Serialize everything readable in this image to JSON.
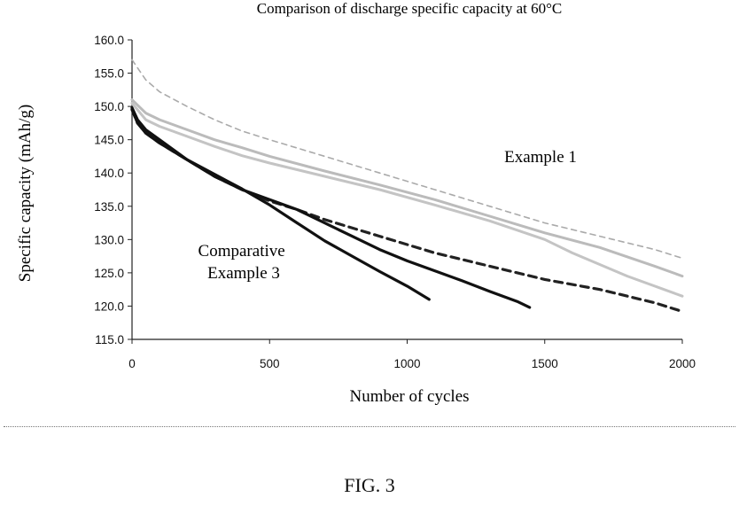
{
  "chart_data": {
    "type": "line",
    "title": "Comparison of discharge specific capacity at 60°C",
    "xlabel": "Number of cycles",
    "ylabel": "Specific capacity (mAh/g)",
    "xlim": [
      0,
      2000
    ],
    "ylim": [
      115,
      160
    ],
    "x_ticks": [
      "0",
      "500",
      "1000",
      "1500",
      "2000"
    ],
    "y_ticks": [
      "115.0",
      "120.0",
      "125.0",
      "130.0",
      "135.0",
      "140.0",
      "145.0",
      "150.0",
      "155.0",
      "160.0"
    ],
    "grid": false,
    "legend": "none",
    "annotations": [
      "Example 1",
      "Comparative\nExample 3"
    ],
    "series": [
      {
        "color": "#aaaaaa",
        "style": "dashed",
        "points": [
          [
            0,
            157
          ],
          [
            50,
            154
          ],
          [
            100,
            152.2
          ],
          [
            200,
            150
          ],
          [
            300,
            148
          ],
          [
            400,
            146.3
          ],
          [
            500,
            145
          ],
          [
            700,
            142.5
          ],
          [
            900,
            140
          ],
          [
            1100,
            137.5
          ],
          [
            1300,
            135
          ],
          [
            1500,
            132.5
          ],
          [
            1700,
            130.5
          ],
          [
            1900,
            128.5
          ],
          [
            2000,
            127.2
          ]
        ]
      },
      {
        "color": "#bbbbbb",
        "style": "solid",
        "points": [
          [
            0,
            151
          ],
          [
            50,
            149
          ],
          [
            100,
            148
          ],
          [
            200,
            146.5
          ],
          [
            300,
            145
          ],
          [
            400,
            143.8
          ],
          [
            500,
            142.5
          ],
          [
            700,
            140.3
          ],
          [
            900,
            138.2
          ],
          [
            1100,
            136
          ],
          [
            1300,
            133.5
          ],
          [
            1500,
            131
          ],
          [
            1700,
            128.8
          ],
          [
            1900,
            126
          ],
          [
            2000,
            124.5
          ]
        ]
      },
      {
        "color": "#c4c4c4",
        "style": "solid",
        "points": [
          [
            0,
            150.5
          ],
          [
            50,
            148
          ],
          [
            100,
            147
          ],
          [
            200,
            145.5
          ],
          [
            300,
            144
          ],
          [
            400,
            142.6
          ],
          [
            500,
            141.5
          ],
          [
            700,
            139.5
          ],
          [
            900,
            137.5
          ],
          [
            1100,
            135.2
          ],
          [
            1300,
            132.8
          ],
          [
            1500,
            130
          ],
          [
            1600,
            128
          ],
          [
            1800,
            124.5
          ],
          [
            2000,
            121.5
          ]
        ]
      },
      {
        "color": "#222222",
        "style": "dashed",
        "points": [
          [
            0,
            149.5
          ],
          [
            20,
            147.5
          ],
          [
            50,
            146
          ],
          [
            100,
            144.5
          ],
          [
            200,
            142
          ],
          [
            300,
            139.5
          ],
          [
            400,
            137.5
          ],
          [
            500,
            135.8
          ],
          [
            600,
            134.5
          ],
          [
            700,
            133
          ],
          [
            900,
            130.5
          ],
          [
            1100,
            128
          ],
          [
            1300,
            126
          ],
          [
            1500,
            124
          ],
          [
            1700,
            122.5
          ],
          [
            1900,
            120.5
          ],
          [
            2000,
            119.2
          ]
        ]
      },
      {
        "color": "#111111",
        "style": "solid",
        "points": [
          [
            0,
            149.8
          ],
          [
            20,
            148
          ],
          [
            50,
            146.5
          ],
          [
            100,
            145
          ],
          [
            200,
            142
          ],
          [
            300,
            139.5
          ],
          [
            400,
            137.5
          ],
          [
            500,
            136
          ],
          [
            600,
            134.5
          ],
          [
            700,
            132.5
          ],
          [
            800,
            130.5
          ],
          [
            900,
            128.5
          ],
          [
            1000,
            126.8
          ],
          [
            1100,
            125.3
          ],
          [
            1200,
            123.8
          ],
          [
            1300,
            122.2
          ],
          [
            1400,
            120.7
          ],
          [
            1445,
            119.8
          ]
        ]
      },
      {
        "color": "#111111",
        "style": "solid",
        "points": [
          [
            0,
            149.6
          ],
          [
            20,
            147.5
          ],
          [
            50,
            146
          ],
          [
            100,
            144.5
          ],
          [
            200,
            142
          ],
          [
            300,
            139.8
          ],
          [
            400,
            137.6
          ],
          [
            500,
            135.2
          ],
          [
            600,
            132.5
          ],
          [
            700,
            129.8
          ],
          [
            800,
            127.5
          ],
          [
            900,
            125.2
          ],
          [
            1000,
            123
          ],
          [
            1080,
            121
          ]
        ]
      }
    ]
  },
  "caption": "FIG. 3"
}
